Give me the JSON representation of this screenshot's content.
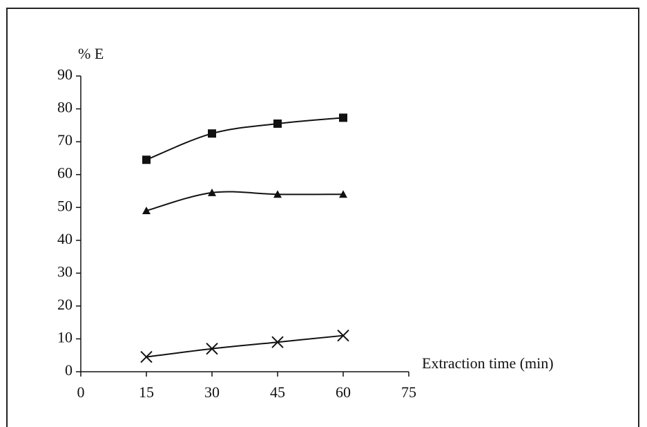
{
  "chart_data": {
    "type": "line",
    "y_label": "% E",
    "x_label": "Extraction time (min)",
    "xlim": [
      0,
      75
    ],
    "xticks": [
      0,
      15,
      30,
      45,
      60,
      75
    ],
    "ylim": [
      0,
      90
    ],
    "yticks": [
      0,
      10,
      20,
      30,
      40,
      50,
      60,
      70,
      80,
      90
    ],
    "grid": false,
    "smooth": true,
    "series": [
      {
        "marker": "square",
        "color": "#111111",
        "x": [
          15,
          30,
          45,
          60
        ],
        "values": [
          64.5,
          72.5,
          75.5,
          77.3
        ]
      },
      {
        "marker": "triangle",
        "color": "#111111",
        "x": [
          15,
          30,
          45,
          60
        ],
        "values": [
          49,
          54.5,
          54,
          54
        ]
      },
      {
        "marker": "cross",
        "color": "#111111",
        "x": [
          15,
          30,
          45,
          60
        ],
        "values": [
          4.5,
          7,
          9,
          11
        ]
      }
    ]
  }
}
